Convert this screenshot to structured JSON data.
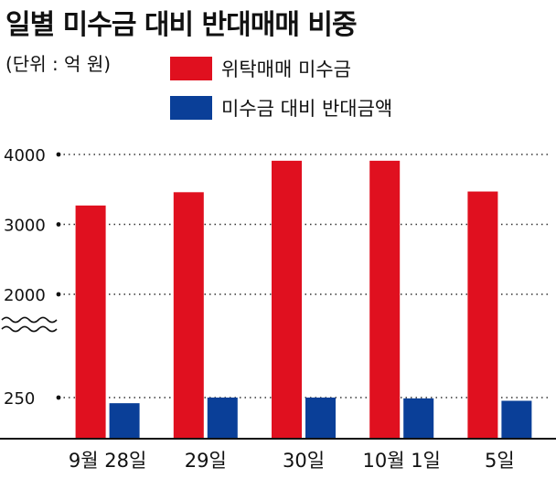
{
  "title": "일별 미수금 대비 반대매매 비중",
  "unit_note": "(단위 : 억 원)",
  "colors": {
    "series1": "#e0101f",
    "series2": "#0a3f98",
    "grid": "#333333",
    "axis": "#111111"
  },
  "chart_data": {
    "type": "bar",
    "title": "일별 미수금 대비 반대매매 비중",
    "xlabel": "",
    "ylabel": "",
    "axis_break": "between 250 and 2000",
    "yticks": [
      250,
      2000,
      3000,
      4000
    ],
    "ytick_labels": [
      "250",
      "2000",
      "3000",
      "4000"
    ],
    "categories": [
      "9월 28일",
      "29일",
      "30일",
      "10월 1일",
      "5일"
    ],
    "series": [
      {
        "name": "위탁매매 미수금",
        "values": [
          3270,
          3460,
          3910,
          3910,
          3470
        ]
      },
      {
        "name": "미수금 대비 반대금액",
        "values": [
          215,
          250,
          320,
          245,
          230
        ]
      }
    ],
    "legend": "top-right",
    "grid": "dotted horizontal"
  }
}
